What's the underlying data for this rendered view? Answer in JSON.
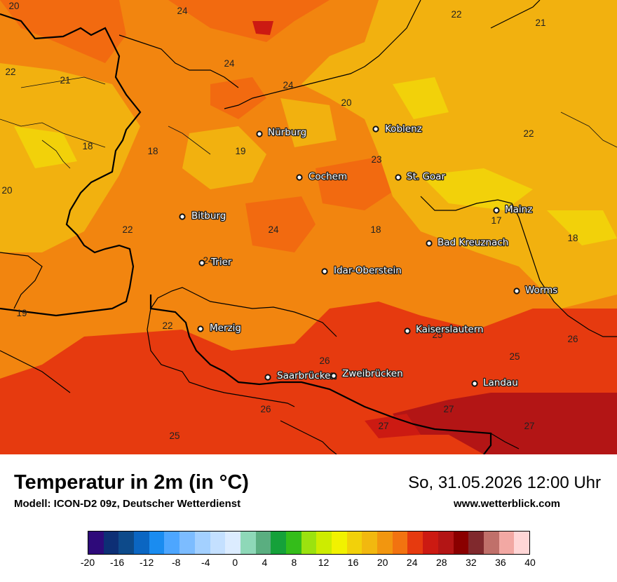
{
  "map": {
    "cities": [
      {
        "name": "Nürburg"
      },
      {
        "name": "Koblenz"
      },
      {
        "name": "Cochem"
      },
      {
        "name": "St. Goar"
      },
      {
        "name": "Mainz"
      },
      {
        "name": "Bitburg"
      },
      {
        "name": "Bad Kreuznach"
      },
      {
        "name": "Trier"
      },
      {
        "name": "Idar-Oberstein"
      },
      {
        "name": "Worms"
      },
      {
        "name": "Merzig"
      },
      {
        "name": "Kaiserslautern"
      },
      {
        "name": "Saarbrücken"
      },
      {
        "name": "Zweibrücken"
      },
      {
        "name": "Landau"
      }
    ],
    "temperatures": [
      "20",
      "24",
      "22",
      "21",
      "22",
      "21",
      "24",
      "24",
      "20",
      "22",
      "18",
      "18",
      "19",
      "23",
      "20",
      "22",
      "17",
      "24",
      "18",
      "18",
      "24",
      "19",
      "25",
      "22",
      "26",
      "25",
      "26",
      "26",
      "27",
      "27",
      "27",
      "25"
    ]
  },
  "footer": {
    "title": "Temperatur in 2m (in °C)",
    "subtitle": "Modell: ICON-D2 09z, Deutscher Wetterdienst",
    "datetime": "So, 31.05.2026 12:00 Uhr",
    "website": "www.wetterblick.com"
  },
  "legend": {
    "colors": [
      "#2e0a7a",
      "#0d2f75",
      "#0d4a8a",
      "#0b66c2",
      "#1a8cf0",
      "#4da6ff",
      "#7cbcff",
      "#a3d0ff",
      "#c4e0ff",
      "#dcecff",
      "#8ed8b8",
      "#5aae80",
      "#15a13a",
      "#34bd1a",
      "#9be20f",
      "#cdec00",
      "#f2f200",
      "#f2d10a",
      "#f2b80f",
      "#f2960f",
      "#f27310",
      "#e63a0f",
      "#cc1a12",
      "#b31515",
      "#8a0000",
      "#80292d",
      "#c0706a",
      "#f2a8a3",
      "#ffd6d6"
    ],
    "ticks": [
      "-20",
      "-16",
      "-12",
      "-8",
      "-4",
      "0",
      "4",
      "8",
      "12",
      "16",
      "20",
      "24",
      "28",
      "32",
      "36",
      "40"
    ]
  }
}
